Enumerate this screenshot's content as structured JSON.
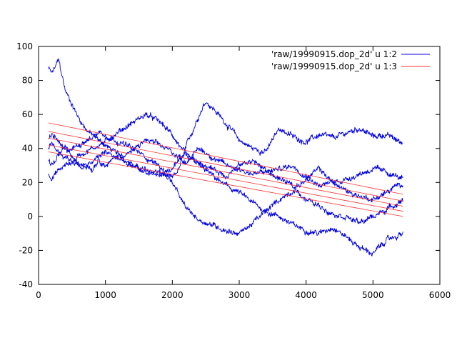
{
  "colors": {
    "series_1": "#0000e0",
    "series_2": "#ff3030",
    "axis": "#000000",
    "background": "#ffffff"
  },
  "chart_data": {
    "type": "line",
    "title": "",
    "xlabel": "",
    "ylabel": "",
    "xlim": [
      0,
      6000
    ],
    "ylim": [
      -40,
      100
    ],
    "xticks": [
      0,
      1000,
      2000,
      3000,
      4000,
      5000,
      6000
    ],
    "yticks": [
      -40,
      -20,
      0,
      20,
      40,
      60,
      80,
      100
    ],
    "grid": false,
    "legend_position": "top-right",
    "series": [
      {
        "name": "'raw/19990915.dop_2d' u 1:2",
        "style": "noisy random-walk traces",
        "traces": [
          {
            "x": [
              150,
              200,
              300,
              400,
              500,
              600,
              700,
              800,
              900,
              1000,
              1200,
              1400,
              1600,
              1800,
              2000,
              2100,
              2200,
              2400,
              2500,
              2600,
              2800,
              3000,
              3200,
              3400,
              3600,
              3800,
              4000,
              4200,
              4400,
              4600,
              4800,
              5000,
              5200,
              5450
            ],
            "y": [
              87,
              84,
              92,
              74,
              66,
              58,
              52,
              48,
              45,
              42,
              36,
              30,
              27,
              26,
              22,
              28,
              40,
              60,
              68,
              64,
              55,
              45,
              40,
              38,
              52,
              47,
              44,
              48,
              46,
              49,
              52,
              47,
              48,
              43
            ]
          },
          {
            "x": [
              150,
              200,
              300,
              400,
              500,
              600,
              700,
              800,
              900,
              1000,
              1200,
              1400,
              1600,
              1800,
              2000,
              2100,
              2200,
              2400,
              2600,
              2800,
              3000,
              3200,
              3400,
              3600,
              3800,
              4000,
              4200,
              4400,
              4600,
              4800,
              5000,
              5200,
              5450
            ],
            "y": [
              25,
              23,
              27,
              30,
              32,
              36,
              38,
              40,
              42,
              44,
              50,
              55,
              60,
              56,
              48,
              42,
              36,
              30,
              24,
              18,
              14,
              8,
              3,
              0,
              -5,
              -8,
              -10,
              -6,
              -12,
              -18,
              -22,
              -14,
              -10
            ]
          },
          {
            "x": [
              150,
              200,
              300,
              400,
              500,
              600,
              700,
              800,
              900,
              1000,
              1200,
              1400,
              1600,
              1800,
              2000,
              2100,
              2200,
              2400,
              2600,
              2800,
              3000,
              3200,
              3400,
              3600,
              3800,
              4000,
              4200,
              4400,
              4600,
              4800,
              5000,
              5200,
              5450
            ],
            "y": [
              45,
              48,
              44,
              38,
              40,
              42,
              45,
              46,
              50,
              48,
              44,
              40,
              35,
              30,
              20,
              12,
              5,
              -2,
              -5,
              -8,
              -10,
              -4,
              3,
              10,
              15,
              22,
              28,
              20,
              15,
              12,
              10,
              14,
              20
            ]
          },
          {
            "x": [
              150,
              200,
              300,
              400,
              500,
              600,
              700,
              800,
              900,
              1000,
              1200,
              1400,
              1600,
              1800,
              2000,
              2200,
              2400,
              2600,
              2800,
              3000,
              3200,
              3400,
              3600,
              3800,
              4000,
              4200,
              4400,
              4600,
              4800,
              5000,
              5200,
              5450
            ],
            "y": [
              33,
              30,
              36,
              40,
              35,
              30,
              32,
              28,
              34,
              30,
              36,
              38,
              45,
              42,
              38,
              32,
              40,
              35,
              30,
              28,
              25,
              26,
              28,
              30,
              24,
              18,
              20,
              22,
              25,
              28,
              26,
              22
            ]
          },
          {
            "x": [
              150,
              200,
              300,
              400,
              500,
              600,
              700,
              800,
              900,
              1000,
              1200,
              1400,
              1600,
              1800,
              2000,
              2200,
              2400,
              2600,
              2800,
              3000,
              3200,
              3400,
              3600,
              3800,
              4000,
              4200,
              4400,
              4600,
              4800,
              5000,
              5200,
              5450
            ],
            "y": [
              40,
              42,
              38,
              35,
              33,
              30,
              28,
              32,
              35,
              38,
              34,
              30,
              26,
              24,
              28,
              36,
              32,
              28,
              24,
              30,
              33,
              27,
              22,
              18,
              10,
              6,
              2,
              0,
              -4,
              0,
              4,
              10
            ]
          }
        ]
      },
      {
        "name": "'raw/19990915.dop_2d' u 1:3",
        "style": "straight parallel fit lines",
        "traces": [
          {
            "x": [
              150,
              5450
            ],
            "y": [
              55,
              13
            ]
          },
          {
            "x": [
              150,
              5450
            ],
            "y": [
              50,
              9
            ]
          },
          {
            "x": [
              150,
              5450
            ],
            "y": [
              46,
              6
            ]
          },
          {
            "x": [
              150,
              5450
            ],
            "y": [
              42,
              3
            ]
          },
          {
            "x": [
              150,
              5450
            ],
            "y": [
              38,
              0
            ]
          }
        ]
      }
    ]
  }
}
